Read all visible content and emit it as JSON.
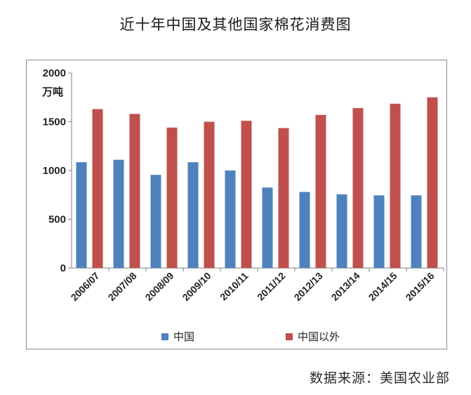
{
  "chart_data": {
    "type": "bar",
    "title": "近十年中国及其他国家棉花消费图",
    "ylabel": "万吨",
    "xlabel": "",
    "ylim": [
      0,
      2000
    ],
    "yticks": [
      "0",
      "500",
      "1000",
      "1500",
      "2000"
    ],
    "categories": [
      "2006/07",
      "2007/08",
      "2008/09",
      "2009/10",
      "2010/11",
      "2011/12",
      "2012/13",
      "2013/14",
      "2014/15",
      "2015/16"
    ],
    "series": [
      {
        "name": "中国",
        "color": "#4f81bd",
        "values": [
          1085,
          1110,
          955,
          1085,
          1000,
          825,
          780,
          755,
          745,
          745
        ]
      },
      {
        "name": "中国以外",
        "color": "#c0504d",
        "values": [
          1630,
          1580,
          1440,
          1500,
          1510,
          1435,
          1570,
          1640,
          1685,
          1750
        ]
      }
    ],
    "legend_position": "bottom",
    "grid": false
  },
  "source": "数据来源：美国农业部"
}
